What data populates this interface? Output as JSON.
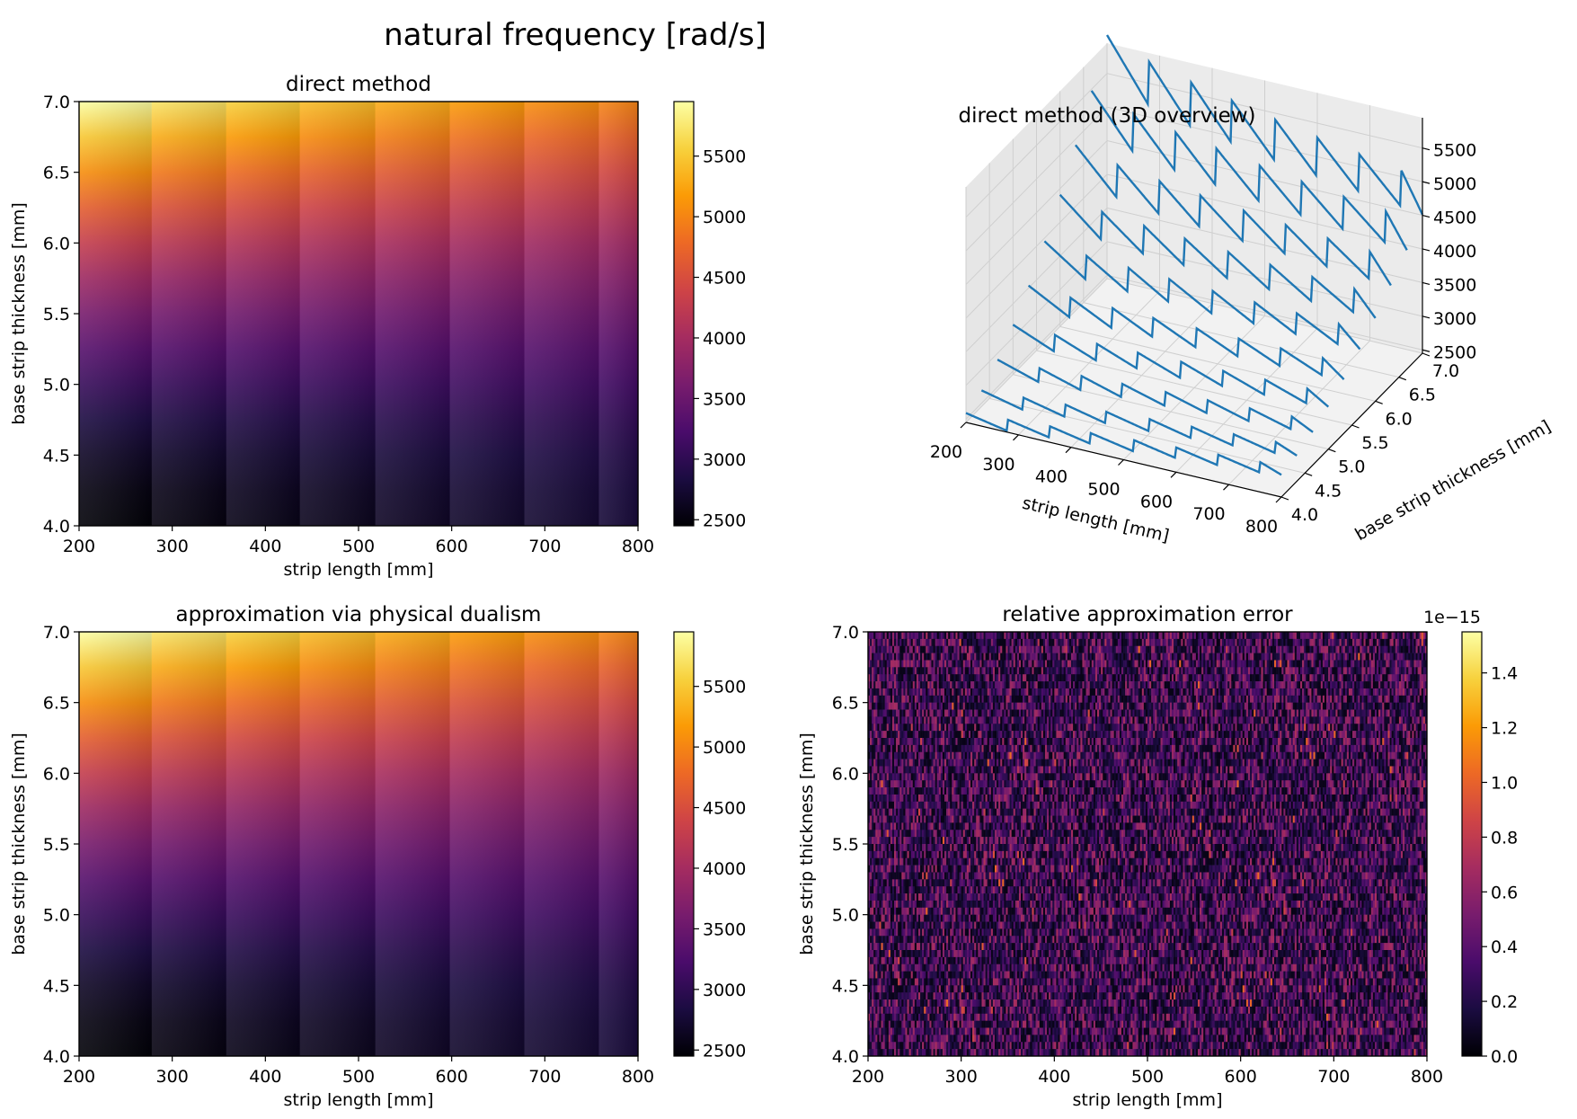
{
  "figure": {
    "suptitle": "natural frequency [rad/s]"
  },
  "colormap": {
    "name": "inferno",
    "stops": [
      "#000004",
      "#1b0c41",
      "#4a0c6b",
      "#781c6d",
      "#a52c60",
      "#cf4446",
      "#ed6925",
      "#fb9b06",
      "#f7d13d",
      "#fcffa4"
    ]
  },
  "line_color": "#1f77b4",
  "chart_data": [
    {
      "id": "direct",
      "type": "heatmap",
      "title": "direct method",
      "xlabel": "strip length [mm]",
      "ylabel": "base strip thickness [mm]",
      "xlim": [
        200,
        800
      ],
      "ylim": [
        4.0,
        7.0
      ],
      "xticks": [
        "200",
        "300",
        "400",
        "500",
        "600",
        "700",
        "800"
      ],
      "yticks": [
        "4.0",
        "4.5",
        "5.0",
        "5.5",
        "6.0",
        "6.5",
        "7.0"
      ],
      "bands": [
        {
          "x0": 200,
          "x1": 278,
          "min": 2470,
          "max": 5950
        },
        {
          "x0": 278,
          "x1": 358,
          "min": 2520,
          "max": 5720
        },
        {
          "x0": 358,
          "x1": 437,
          "min": 2570,
          "max": 5560
        },
        {
          "x0": 437,
          "x1": 518,
          "min": 2610,
          "max": 5420
        },
        {
          "x0": 518,
          "x1": 598,
          "min": 2660,
          "max": 5300
        },
        {
          "x0": 598,
          "x1": 678,
          "min": 2700,
          "max": 5180
        },
        {
          "x0": 678,
          "x1": 758,
          "min": 2740,
          "max": 5080
        },
        {
          "x0": 758,
          "x1": 800,
          "min": 2780,
          "max": 5000
        }
      ],
      "colorbar": {
        "min": 2450,
        "max": 5950,
        "ticks": [
          "2500",
          "3000",
          "3500",
          "4000",
          "4500",
          "5000",
          "5500"
        ]
      }
    },
    {
      "id": "approx",
      "type": "heatmap",
      "title": "approximation via physical dualism",
      "xlabel": "strip length [mm]",
      "ylabel": "base strip thickness [mm]",
      "xlim": [
        200,
        800
      ],
      "ylim": [
        4.0,
        7.0
      ],
      "xticks": [
        "200",
        "300",
        "400",
        "500",
        "600",
        "700",
        "800"
      ],
      "yticks": [
        "4.0",
        "4.5",
        "5.0",
        "5.5",
        "6.0",
        "6.5",
        "7.0"
      ],
      "bands": [
        {
          "x0": 200,
          "x1": 278,
          "min": 2470,
          "max": 5950
        },
        {
          "x0": 278,
          "x1": 358,
          "min": 2520,
          "max": 5720
        },
        {
          "x0": 358,
          "x1": 437,
          "min": 2570,
          "max": 5560
        },
        {
          "x0": 437,
          "x1": 518,
          "min": 2610,
          "max": 5420
        },
        {
          "x0": 518,
          "x1": 598,
          "min": 2660,
          "max": 5300
        },
        {
          "x0": 598,
          "x1": 678,
          "min": 2700,
          "max": 5180
        },
        {
          "x0": 678,
          "x1": 758,
          "min": 2740,
          "max": 5080
        },
        {
          "x0": 758,
          "x1": 800,
          "min": 2780,
          "max": 5000
        }
      ],
      "colorbar": {
        "min": 2450,
        "max": 5950,
        "ticks": [
          "2500",
          "3000",
          "3500",
          "4000",
          "4500",
          "5000",
          "5500"
        ]
      }
    },
    {
      "id": "error",
      "type": "heatmap",
      "title": "relative approximation error",
      "xlabel": "strip length [mm]",
      "ylabel": "base strip thickness [mm]",
      "xlim": [
        200,
        800
      ],
      "ylim": [
        4.0,
        7.0
      ],
      "xticks": [
        "200",
        "300",
        "400",
        "500",
        "600",
        "700",
        "800"
      ],
      "yticks": [
        "4.0",
        "4.5",
        "5.0",
        "5.5",
        "6.0",
        "6.5",
        "7.0"
      ],
      "value_range": [
        0.0,
        1.55
      ],
      "colorbar": {
        "min": 0.0,
        "max": 1.55,
        "ticks": [
          "0.0",
          "0.2",
          "0.4",
          "0.6",
          "0.8",
          "1.0",
          "1.2",
          "1.4"
        ],
        "offset_text": "1e−15"
      }
    },
    {
      "id": "overview3d",
      "type": "line",
      "title": "direct method (3D overview)",
      "xlabel": "strip length [mm]",
      "ylabel": "base strip thickness [mm]",
      "xticks": [
        "200",
        "300",
        "400",
        "500",
        "600",
        "700",
        "800"
      ],
      "yticks": [
        "4.0",
        "4.5",
        "5.0",
        "5.5",
        "6.0",
        "6.5",
        "7.0"
      ],
      "zticks": [
        "2500",
        "3000",
        "3500",
        "4000",
        "4500",
        "5000",
        "5500"
      ],
      "xlim": [
        200,
        800
      ],
      "ylim": [
        4.0,
        7.0
      ],
      "zlim": [
        2450,
        5950
      ],
      "thickness_lines": [
        4.0,
        4.33,
        4.67,
        5.0,
        5.33,
        5.67,
        6.0,
        6.33,
        6.67,
        7.0
      ]
    }
  ]
}
